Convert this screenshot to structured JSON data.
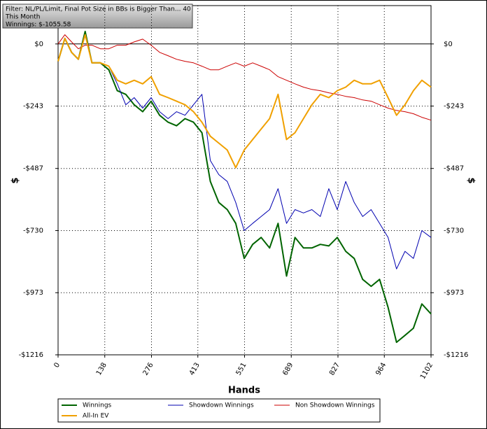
{
  "chart_data": {
    "type": "line",
    "info_box": [
      "Filter: NL/PL/Limit, Final Pot Size in BBs is Bigger Than... 40",
      "This Month",
      "Winnings: $-1055.58"
    ],
    "xlabel": "Hands",
    "ylabel": "$",
    "xlim": [
      0,
      1102
    ],
    "xticks": [
      0,
      138,
      276,
      413,
      551,
      689,
      827,
      964,
      1102
    ],
    "ylim": [
      -1216,
      150
    ],
    "yticks": [
      {
        "value": 0,
        "label": "$0"
      },
      {
        "value": -243,
        "label": "-$243"
      },
      {
        "value": -487,
        "label": "-$487"
      },
      {
        "value": -730,
        "label": "-$730"
      },
      {
        "value": -973,
        "label": "-$973"
      },
      {
        "value": -1216,
        "label": "-$1216"
      }
    ],
    "grid": true,
    "x": [
      0,
      20,
      40,
      60,
      80,
      100,
      125,
      150,
      175,
      200,
      225,
      250,
      275,
      300,
      325,
      350,
      375,
      400,
      425,
      450,
      475,
      500,
      525,
      550,
      575,
      600,
      625,
      650,
      675,
      700,
      725,
      750,
      775,
      800,
      825,
      850,
      875,
      900,
      925,
      950,
      975,
      1000,
      1025,
      1050,
      1075,
      1102
    ],
    "series": [
      {
        "name": "Winnings",
        "color": "#006400",
        "width": 2,
        "values": [
          -68,
          22,
          -33,
          -60,
          49,
          -74,
          -74,
          -101,
          -183,
          -197,
          -238,
          -265,
          -224,
          -279,
          -306,
          -320,
          -292,
          -306,
          -347,
          -538,
          -620,
          -648,
          -702,
          -839,
          -784,
          -757,
          -798,
          -702,
          -908,
          -757,
          -798,
          -798,
          -784,
          -790,
          -757,
          -811,
          -839,
          -921,
          -948,
          -921,
          -1030,
          -1167,
          -1140,
          -1112,
          -1017,
          -1056
        ]
      },
      {
        "name": "Showdown Winnings",
        "color": "#0000b0",
        "width": 1,
        "values": [
          -68,
          22,
          -33,
          -60,
          36,
          -74,
          -74,
          -87,
          -156,
          -238,
          -210,
          -251,
          -210,
          -265,
          -292,
          -265,
          -279,
          -238,
          -197,
          -456,
          -511,
          -538,
          -620,
          -730,
          -702,
          -675,
          -648,
          -566,
          -702,
          -648,
          -661,
          -648,
          -675,
          -566,
          -648,
          -538,
          -620,
          -675,
          -648,
          -702,
          -757,
          -880,
          -811,
          -839,
          -730,
          -757
        ]
      },
      {
        "name": "Non Showdown Winnings",
        "color": "#cc0000",
        "width": 1,
        "values": [
          0,
          36,
          8,
          -19,
          -5,
          -5,
          -19,
          -19,
          -5,
          -5,
          8,
          19,
          -5,
          -33,
          -46,
          -60,
          -68,
          -74,
          -87,
          -101,
          -101,
          -87,
          -74,
          -87,
          -74,
          -87,
          -101,
          -128,
          -142,
          -156,
          -169,
          -178,
          -183,
          -191,
          -197,
          -205,
          -210,
          -219,
          -224,
          -238,
          -251,
          -260,
          -265,
          -273,
          -287,
          -298
        ]
      },
      {
        "name": "All-In EV",
        "color": "#f0a000",
        "width": 2,
        "values": [
          -68,
          22,
          -33,
          -60,
          36,
          -74,
          -74,
          -87,
          -142,
          -156,
          -142,
          -156,
          -128,
          -197,
          -210,
          -224,
          -238,
          -265,
          -306,
          -361,
          -388,
          -415,
          -484,
          -415,
          -374,
          -333,
          -292,
          -197,
          -374,
          -347,
          -292,
          -238,
          -197,
          -210,
          -183,
          -169,
          -142,
          -156,
          -156,
          -142,
          -210,
          -279,
          -238,
          -183,
          -142,
          -169
        ]
      }
    ]
  }
}
